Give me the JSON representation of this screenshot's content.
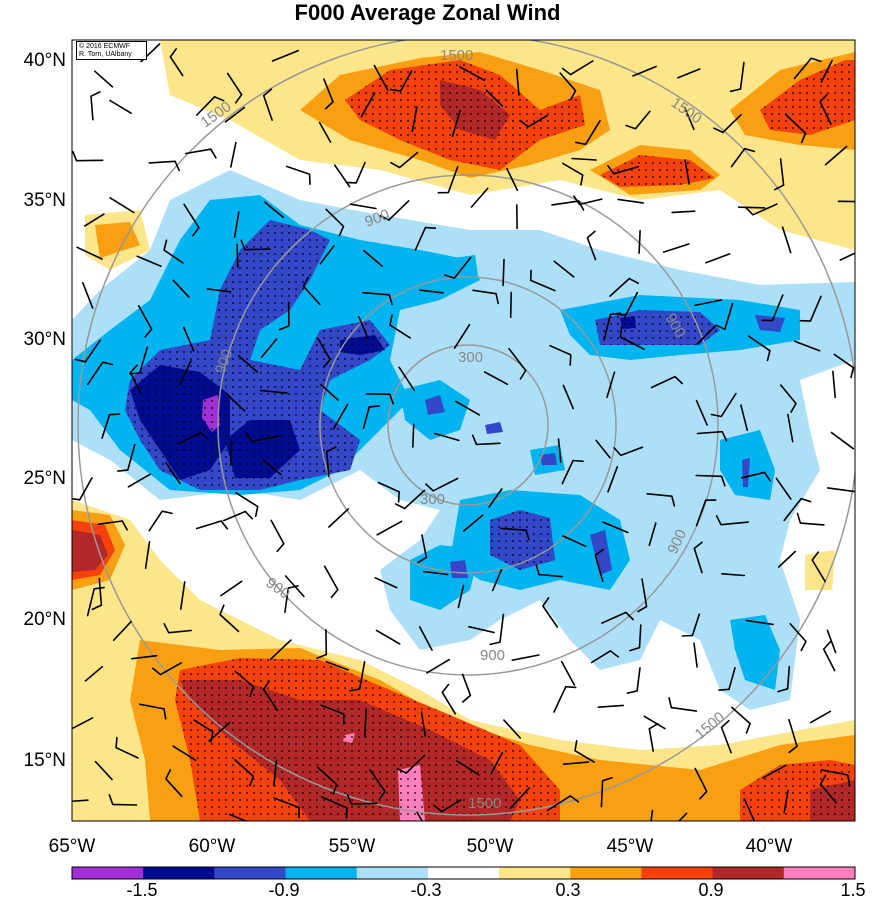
{
  "title": "F000 Average Zonal Wind",
  "copyright": {
    "line1": "© 2016 ECMWF",
    "line2": "R. Torn, UAlbany"
  },
  "lat_labels": [
    "40°N",
    "35°N",
    "30°N",
    "25°N",
    "20°N",
    "15°N"
  ],
  "lon_labels": [
    "65°W",
    "60°W",
    "55°W",
    "50°W",
    "45°W",
    "40°W"
  ],
  "contour_labels": [
    "1500",
    "1500",
    "900",
    "900",
    "300",
    "300",
    "900",
    "900",
    "900",
    "1500",
    "1500",
    "1500",
    "900"
  ],
  "colorbar": {
    "labels": [
      "-1.5",
      "-0.9",
      "-0.3",
      "0.3",
      "0.9",
      "1.5"
    ],
    "colors": [
      "#a12fd6",
      "#000c8f",
      "#3447c8",
      "#00b4ef",
      "#ade0f8",
      "#ffffff",
      "#fde58a",
      "#f8a011",
      "#f5420d",
      "#b22829",
      "#ff7fbf"
    ]
  },
  "field_colors": {
    "strong_negative": "#000c8f",
    "negative": "#3447c8",
    "moderate_negative": "#00b4ef",
    "weak_negative": "#ade0f8",
    "weak_positive": "#fde58a",
    "positive": "#f8a011",
    "moderate_positive": "#f5420d",
    "strong_positive": "#b22829",
    "extreme_positive": "#ff7fbf",
    "extreme_negative": "#a12fd6",
    "contour_line": "#999999"
  }
}
